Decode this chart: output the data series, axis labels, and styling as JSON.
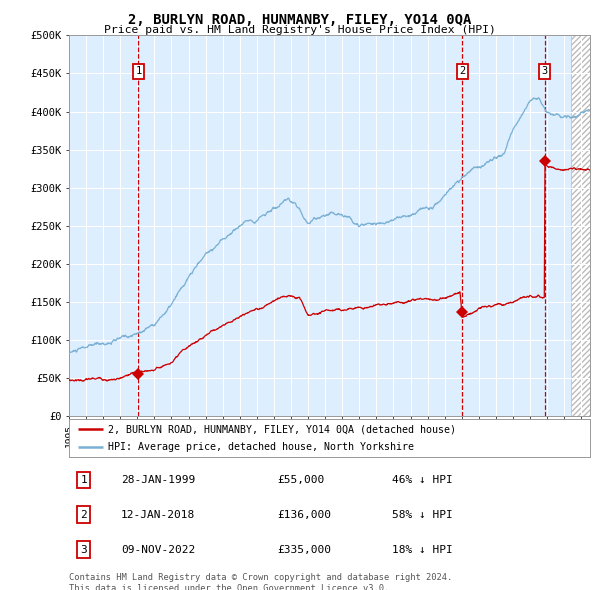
{
  "title": "2, BURLYN ROAD, HUNMANBY, FILEY, YO14 0QA",
  "subtitle": "Price paid vs. HM Land Registry's House Price Index (HPI)",
  "sale_label": "2, BURLYN ROAD, HUNMANBY, FILEY, YO14 0QA (detached house)",
  "hpi_label": "HPI: Average price, detached house, North Yorkshire",
  "sales": [
    {
      "index": 1,
      "date_num": 1999.07,
      "price": 55000,
      "date_str": "28-JAN-1999",
      "pct": "46% ↓ HPI"
    },
    {
      "index": 2,
      "date_num": 2018.03,
      "price": 136000,
      "date_str": "12-JAN-2018",
      "pct": "58% ↓ HPI"
    },
    {
      "index": 3,
      "date_num": 2022.86,
      "price": 335000,
      "date_str": "09-NOV-2022",
      "pct": "18% ↓ HPI"
    }
  ],
  "sale_color": "#cc0000",
  "hpi_color": "#7ab0d4",
  "plot_bg": "#ddeeff",
  "ylim": [
    0,
    500000
  ],
  "xlim_start": 1995.0,
  "xlim_end": 2025.5,
  "footnote": "Contains HM Land Registry data © Crown copyright and database right 2024.\nThis data is licensed under the Open Government Licence v3.0.",
  "yticks": [
    0,
    50000,
    100000,
    150000,
    200000,
    250000,
    300000,
    350000,
    400000,
    450000,
    500000
  ],
  "ytick_labels": [
    "£0",
    "£50K",
    "£100K",
    "£150K",
    "£200K",
    "£250K",
    "£300K",
    "£350K",
    "£400K",
    "£450K",
    "£500K"
  ]
}
